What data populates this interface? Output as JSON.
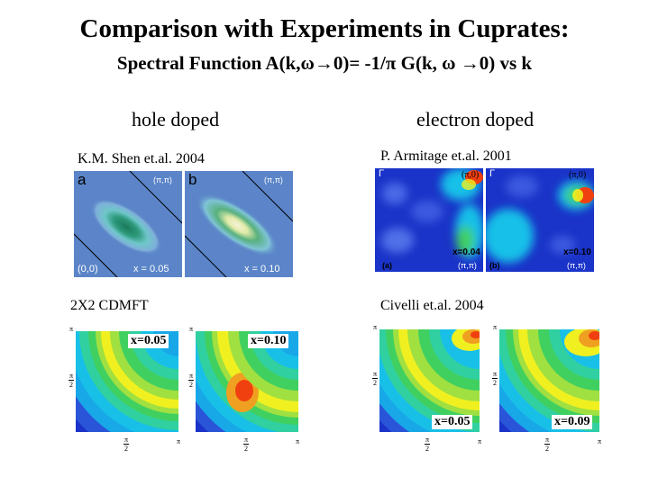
{
  "title": "Comparison with Experiments in Cuprates:",
  "subtitle": "Spectral Function A(k,ω→0)= -1/π G(k, ω →0) vs k",
  "columns": {
    "left": "hole doped",
    "right": "electron doped"
  },
  "citations": {
    "shen": "K.M. Shen et.al. 2004",
    "armitage": "P. Armitage et.al. 2001",
    "cdmft": "2X2 CDMFT",
    "civelli": "Civelli et.al. 2004"
  },
  "shen_panels": {
    "a": {
      "letter": "a",
      "corner": "(π,π)",
      "origin": "(0,0)",
      "doping": "x = 0.05"
    },
    "b": {
      "letter": "b",
      "corner": "(π,π)",
      "doping": "x = 0.10"
    }
  },
  "armitage_panels": {
    "a": {
      "gamma": "Γ",
      "corner": "(π,0)",
      "doping": "x=0.04",
      "tag": "(a)",
      "bottom": "(π,π)"
    },
    "b": {
      "gamma": "Γ",
      "corner": "(π,0)",
      "doping": "x=0.10",
      "tag": "(b)",
      "bottom": "(π,π)"
    }
  },
  "cdmft_dopings": [
    "x=0.05",
    "x=0.10"
  ],
  "civelli_dopings": [
    "x=0.05",
    "x=0.09"
  ],
  "tick_labels": {
    "pi": "π",
    "two": "2"
  },
  "colors": {
    "low": "#1a33c8",
    "mid": "#18c0e8",
    "green": "#40d060",
    "yellow": "#f0f020",
    "high": "#f04010",
    "arpes_bg": "#5b85c8",
    "arpes_ridge": "#f6f2d6"
  }
}
